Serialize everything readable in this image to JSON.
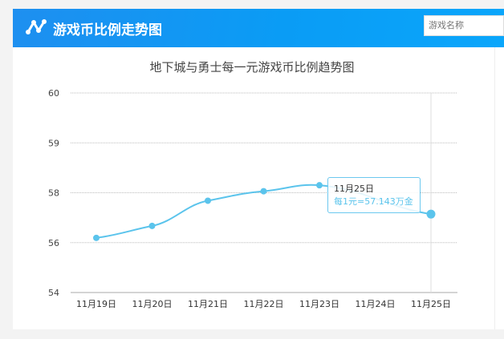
{
  "header": {
    "title": "游戏币比例走势图",
    "search_placeholder": "游戏名称",
    "icon": "line-chart-icon"
  },
  "chart_data": {
    "type": "line",
    "title": "地下城与勇士每一元游戏币比例趋势图",
    "categories": [
      "11月19日",
      "11月20日",
      "11月21日",
      "11月22日",
      "11月23日",
      "11月24日",
      "11月25日"
    ],
    "values": [
      56.19,
      56.67,
      57.68,
      58.03,
      58.15,
      null,
      57.143
    ],
    "yticks": [
      54,
      56,
      58,
      59,
      60
    ],
    "ylim": [
      54,
      60
    ],
    "grid": true,
    "color": "#5bc4ec",
    "tooltip": {
      "date": "11月25日",
      "value": "每1元=57.143万金"
    }
  }
}
